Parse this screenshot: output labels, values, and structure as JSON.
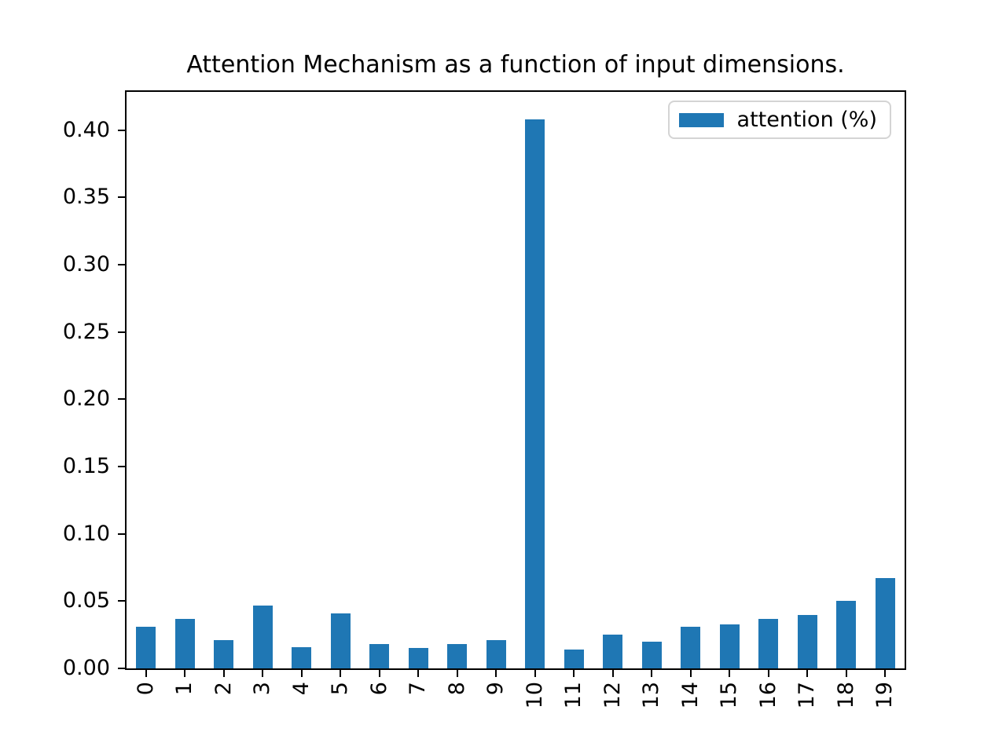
{
  "chart_data": {
    "type": "bar",
    "title": "Attention Mechanism as a function of input dimensions.",
    "categories": [
      "0",
      "1",
      "2",
      "3",
      "4",
      "5",
      "6",
      "7",
      "8",
      "9",
      "10",
      "11",
      "12",
      "13",
      "14",
      "15",
      "16",
      "17",
      "18",
      "19"
    ],
    "series": [
      {
        "name": "attention (%)",
        "color": "#1f77b4",
        "values": [
          0.031,
          0.037,
          0.021,
          0.047,
          0.016,
          0.041,
          0.018,
          0.015,
          0.018,
          0.021,
          0.408,
          0.014,
          0.025,
          0.02,
          0.031,
          0.033,
          0.037,
          0.04,
          0.05,
          0.067
        ]
      }
    ],
    "xlabel": "",
    "ylabel": "",
    "ylim": [
      0,
      0.4284
    ],
    "y_ticks": {
      "values": [
        0.0,
        0.05,
        0.1,
        0.15,
        0.2,
        0.25,
        0.3,
        0.35,
        0.4
      ],
      "labels": [
        "0.00",
        "0.05",
        "0.10",
        "0.15",
        "0.20",
        "0.25",
        "0.30",
        "0.35",
        "0.40"
      ]
    },
    "x_tick_rotation": 90,
    "grid": false,
    "legend": {
      "visible": true,
      "position": "upper right"
    },
    "colors": {
      "background": "#ffffff",
      "text": "#000000",
      "spine": "#000000",
      "legend_border": "#d4d4d4"
    }
  }
}
